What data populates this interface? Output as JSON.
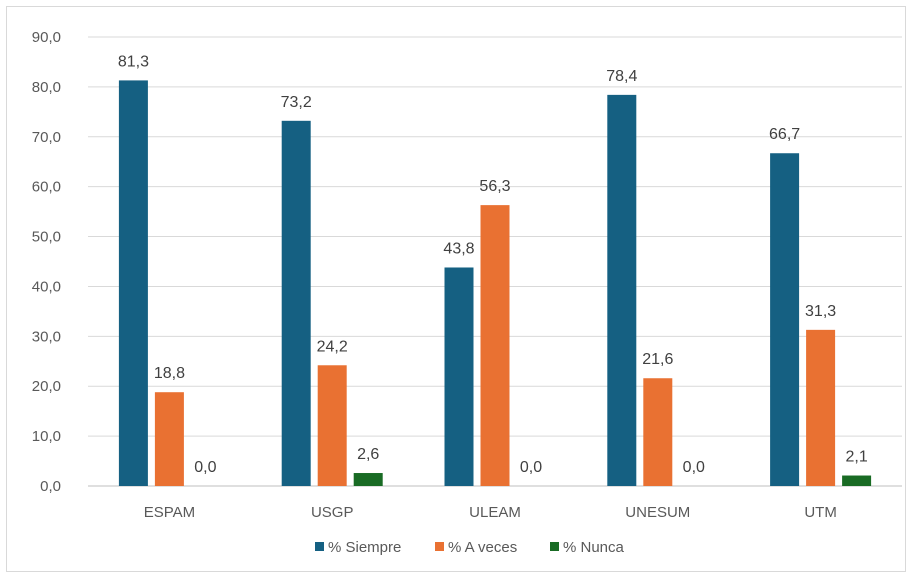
{
  "chart_data": {
    "type": "bar",
    "categories": [
      "ESPAM",
      "USGP",
      "ULEAM",
      "UNESUM",
      "UTM"
    ],
    "series": [
      {
        "name": "% Siempre",
        "color": "#156082",
        "values": [
          81.3,
          73.2,
          43.8,
          78.4,
          66.7
        ],
        "labels": [
          "81,3",
          "73,2",
          "43,8",
          "78,4",
          "66,7"
        ]
      },
      {
        "name": "% A veces",
        "color": "#E97132",
        "values": [
          18.8,
          24.2,
          56.3,
          21.6,
          31.3
        ],
        "labels": [
          "18,8",
          "24,2",
          "56,3",
          "21,6",
          "31,3"
        ]
      },
      {
        "name": "% Nunca",
        "color": "#196B24",
        "values": [
          0.0,
          2.6,
          0.0,
          0.0,
          2.1
        ],
        "labels": [
          "0,0",
          "2,6",
          "0,0",
          "0,0",
          "2,1"
        ]
      }
    ],
    "ylim": [
      0,
      90
    ],
    "y_ticks": [
      0,
      10,
      20,
      30,
      40,
      50,
      60,
      70,
      80,
      90
    ],
    "y_tick_labels": [
      "0,0",
      "10,0",
      "20,0",
      "30,0",
      "40,0",
      "50,0",
      "60,0",
      "70,0",
      "80,0",
      "90,0"
    ],
    "grid": true,
    "legend": "bottom",
    "title": "",
    "xlabel": "",
    "ylabel": ""
  }
}
